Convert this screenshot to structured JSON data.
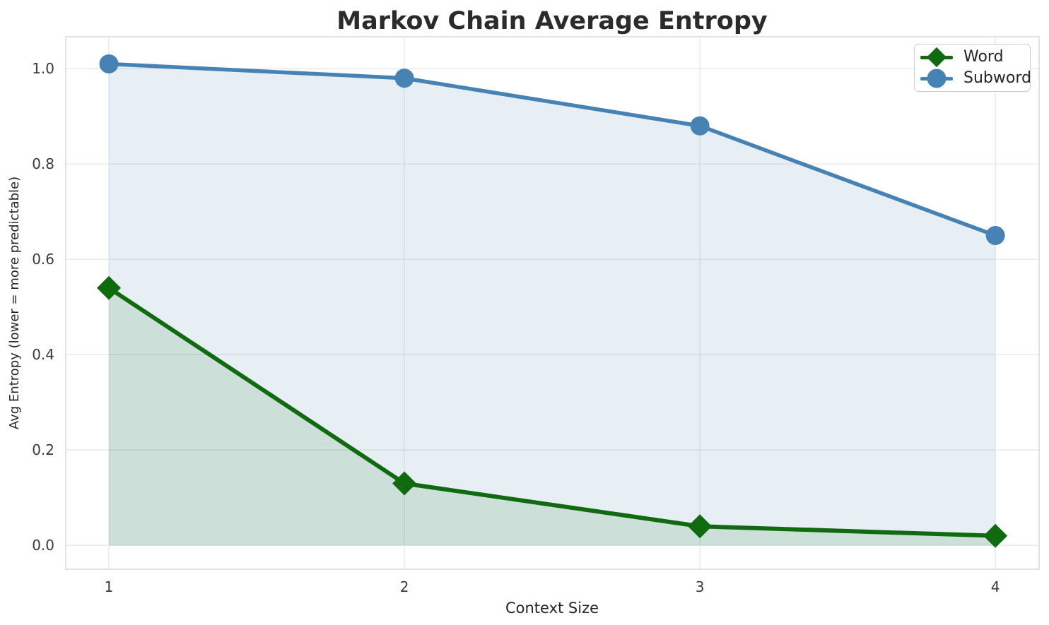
{
  "chart_data": {
    "type": "line",
    "title": "Markov Chain Average Entropy",
    "xlabel": "Context Size",
    "ylabel": "Avg Entropy (lower = more predictable)",
    "x": [
      1,
      2,
      3,
      4
    ],
    "xtick_labels": [
      "1",
      "2",
      "3",
      "4"
    ],
    "ytick_values": [
      0.0,
      0.2,
      0.4,
      0.6,
      0.8,
      1.0
    ],
    "ytick_labels": [
      "0.0",
      "0.2",
      "0.4",
      "0.6",
      "0.8",
      "1.0"
    ],
    "xlim": [
      0.854,
      4.148
    ],
    "ylim": [
      -0.05,
      1.067
    ],
    "grid": true,
    "legend_position": "upper right",
    "area_baseline": 0,
    "series": [
      {
        "name": "Word",
        "marker": "diamond",
        "color": "#106b10",
        "fill_alpha": 0.12,
        "values": [
          0.54,
          0.13,
          0.04,
          0.02
        ]
      },
      {
        "name": "Subword",
        "marker": "circle",
        "color": "#4682b4",
        "fill_alpha": 0.13,
        "values": [
          1.01,
          0.98,
          0.88,
          0.65
        ]
      }
    ],
    "colors": {
      "grid": "#e8e8e8",
      "spine": "#d9d9d9",
      "title": "#2b2b2b",
      "tick": "#3b3b3b",
      "label": "#262626",
      "legend_border": "#cccccc",
      "word": "#106b10",
      "subword": "#4682b4"
    }
  }
}
